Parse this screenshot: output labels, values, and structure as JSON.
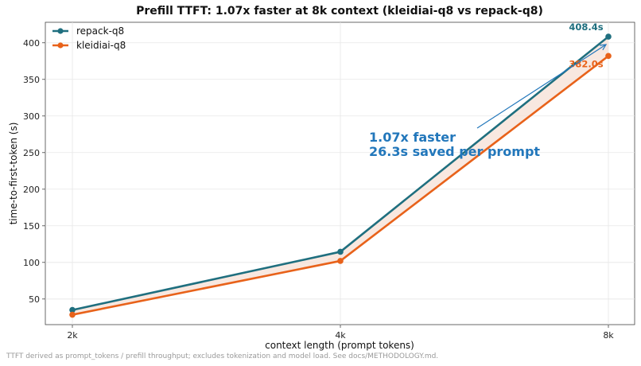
{
  "chart_data": {
    "type": "line",
    "title": "Prefill TTFT: 1.07x faster at 8k context (kleidiai-q8 vs repack-q8)",
    "xlabel": "context length (prompt tokens)",
    "ylabel": "time-to-first-token (s)",
    "categories": [
      "2k",
      "4k",
      "8k"
    ],
    "ylim": [
      15,
      428
    ],
    "yticks": [
      50,
      100,
      150,
      200,
      250,
      300,
      350,
      400
    ],
    "grid": true,
    "legend_position": "top-left",
    "series": [
      {
        "name": "repack-q8",
        "color": "#1f6f7f",
        "values": [
          35.0,
          114.5,
          408.4
        ]
      },
      {
        "name": "kleidiai-q8",
        "color": "#e8621a",
        "values": [
          28.5,
          102.0,
          382.0
        ]
      }
    ],
    "fill_between_color": "#f6e0d6",
    "end_labels": [
      "408.4s",
      "382.0s"
    ],
    "annotation": {
      "line1": "1.07x faster",
      "line2": "26.3s saved per prompt",
      "color": "#2277bb"
    }
  },
  "footnote": "TTFT derived as prompt_tokens / prefill throughput; excludes tokenization and model load. See docs/METHODOLOGY.md."
}
